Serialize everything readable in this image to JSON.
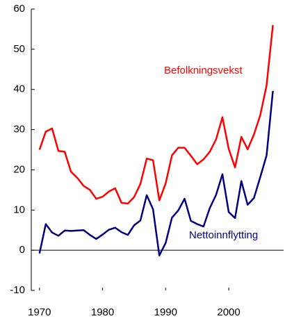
{
  "chart_data": {
    "type": "line",
    "x": [
      1970,
      1971,
      1972,
      1973,
      1974,
      1975,
      1976,
      1977,
      1978,
      1979,
      1980,
      1981,
      1982,
      1983,
      1984,
      1985,
      1986,
      1987,
      1988,
      1989,
      1990,
      1991,
      1992,
      1993,
      1994,
      1995,
      1996,
      1997,
      1998,
      1999,
      2000,
      2001,
      2002,
      2003,
      2004,
      2005,
      2006,
      2007
    ],
    "series": [
      {
        "name": "Befolkningsvekst",
        "color": "#ff0000",
        "values": [
          25,
          29.5,
          30.3,
          24.7,
          24.5,
          19.5,
          18,
          16,
          15,
          12.8,
          13.3,
          14.6,
          15.4,
          11.8,
          11.6,
          13.2,
          16.5,
          22.8,
          22.4,
          12.4,
          16.6,
          23.6,
          25.5,
          25.5,
          23.5,
          21.4,
          22.6,
          24.5,
          27.6,
          33.1,
          25.2,
          20.6,
          28.2,
          25.1,
          28.8,
          33.6,
          41,
          56
        ]
      },
      {
        "name": "Nettoinnflytting",
        "color": "#000080",
        "values": [
          -0.8,
          6.5,
          4.4,
          3.6,
          4.9,
          4.8,
          4.9,
          5,
          3.8,
          2.8,
          3.9,
          5.1,
          5.6,
          4.5,
          3.8,
          6.2,
          7.4,
          13.7,
          10.2,
          -1.3,
          1.8,
          8.1,
          9.9,
          12.8,
          7.3,
          6.5,
          5.9,
          10.5,
          13.8,
          18.9,
          9.5,
          8,
          17.2,
          11.3,
          13,
          18.2,
          23.6,
          39.6
        ]
      }
    ],
    "xlim": [
      1968.7,
      2008.7
    ],
    "xticks": [
      1970,
      1980,
      1990,
      2000
    ],
    "ylim": [
      -10,
      60
    ],
    "yticks": [
      -10,
      0,
      10,
      20,
      30,
      40,
      50,
      60
    ]
  }
}
